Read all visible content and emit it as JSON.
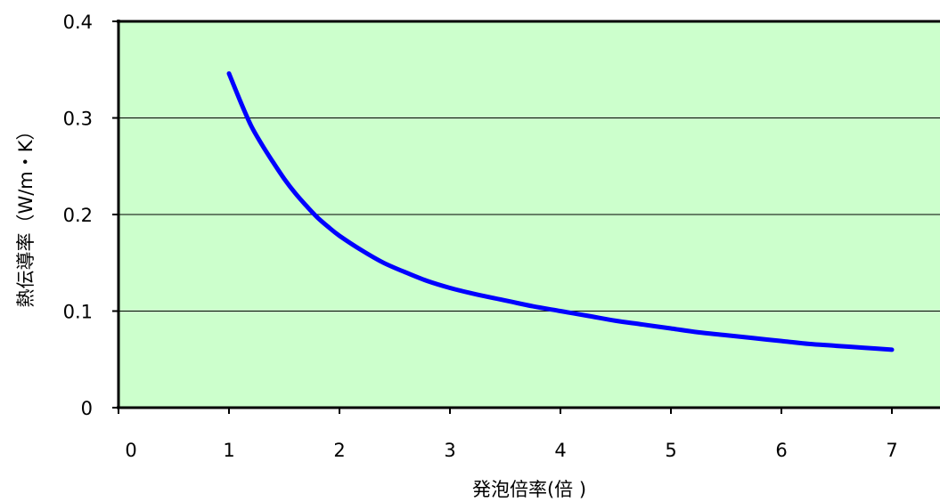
{
  "chart_data": {
    "type": "line",
    "title": "",
    "xlabel": "発泡倍率(倍 )",
    "ylabel": "熱伝導率（W/m・K）",
    "xlim": [
      0,
      7
    ],
    "ylim": [
      0,
      0.4
    ],
    "x_ticks": [
      "0",
      "1",
      "2",
      "3",
      "4",
      "5",
      "6",
      "7"
    ],
    "y_ticks": [
      "0",
      "0.1",
      "0.2",
      "0.3",
      "0.4"
    ],
    "grid": "horizontal",
    "legend": "none",
    "plot_background": "#ccffcc",
    "series": [
      {
        "color": "#0000ff",
        "x": [
          1.0,
          1.1,
          1.2,
          1.3,
          1.4,
          1.5,
          1.6,
          1.7,
          1.8,
          1.9,
          2.0,
          2.2,
          2.4,
          2.6,
          2.8,
          3.0,
          3.25,
          3.5,
          3.75,
          4.0,
          4.25,
          4.5,
          4.75,
          5.0,
          5.25,
          5.5,
          5.75,
          6.0,
          6.25,
          6.5,
          6.75,
          7.0
        ],
        "y": [
          0.346,
          0.318,
          0.292,
          0.272,
          0.254,
          0.237,
          0.222,
          0.209,
          0.197,
          0.187,
          0.178,
          0.163,
          0.15,
          0.14,
          0.131,
          0.124,
          0.117,
          0.111,
          0.105,
          0.1,
          0.095,
          0.09,
          0.086,
          0.082,
          0.078,
          0.075,
          0.072,
          0.069,
          0.066,
          0.064,
          0.062,
          0.06
        ]
      }
    ]
  }
}
